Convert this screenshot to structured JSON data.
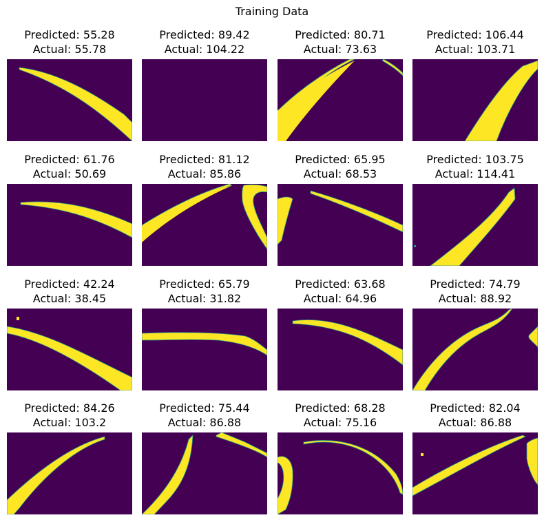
{
  "figure": {
    "suptitle": "Training Data"
  },
  "colors": {
    "background": "#440154",
    "foreground": "#fde725",
    "edge": "#21918c"
  },
  "chart_data": {
    "type": "image-grid",
    "title": "Training Data",
    "rows": 4,
    "cols": 4,
    "panels": [
      {
        "predicted": "Predicted: 55.28",
        "actual": "Actual: 55.78"
      },
      {
        "predicted": "Predicted: 89.42",
        "actual": "Actual: 104.22"
      },
      {
        "predicted": "Predicted: 80.71",
        "actual": "Actual: 73.63"
      },
      {
        "predicted": "Predicted: 106.44",
        "actual": "Actual: 103.71"
      },
      {
        "predicted": "Predicted: 61.76",
        "actual": "Actual: 50.69"
      },
      {
        "predicted": "Predicted: 81.12",
        "actual": "Actual: 85.86"
      },
      {
        "predicted": "Predicted: 65.95",
        "actual": "Actual: 68.53"
      },
      {
        "predicted": "Predicted: 103.75",
        "actual": "Actual: 114.41"
      },
      {
        "predicted": "Predicted: 42.24",
        "actual": "Actual: 38.45"
      },
      {
        "predicted": "Predicted: 65.79",
        "actual": "Actual: 31.82"
      },
      {
        "predicted": "Predicted: 63.68",
        "actual": "Actual: 64.96"
      },
      {
        "predicted": "Predicted: 74.79",
        "actual": "Actual: 88.92"
      },
      {
        "predicted": "Predicted: 84.26",
        "actual": "Actual: 103.2"
      },
      {
        "predicted": "Predicted: 75.44",
        "actual": "Actual: 86.88"
      },
      {
        "predicted": "Predicted: 68.28",
        "actual": "Actual: 75.16"
      },
      {
        "predicted": "Predicted: 82.04",
        "actual": "Actual: 86.88"
      }
    ]
  }
}
